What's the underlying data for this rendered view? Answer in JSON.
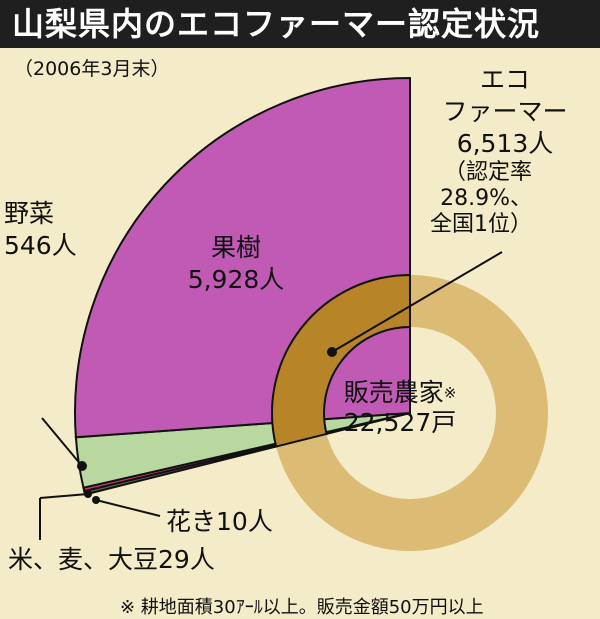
{
  "title": "山梨県内のエコファーマー認定状況",
  "subtitle": "（2006年3月末）",
  "footnote": "※ 耕地面積30ｱｰﾙ以上。販売金額50万円以上",
  "chart_data": {
    "type": "pie",
    "total": {
      "label": "販売農家",
      "mark": "※",
      "value_text": "22,527戸",
      "value": 22527
    },
    "eco_farmer": {
      "label_line1": "エコ",
      "label_line2": "ファーマー",
      "value_text": "6,513人",
      "value": 6513,
      "rate_line1": "（認定率",
      "rate_line2": "28.9%、",
      "rate_line3": "全国1位）",
      "rate": 28.9
    },
    "slices": [
      {
        "name_text": "果樹",
        "value_text": "5,928人",
        "value": 5928
      },
      {
        "name_text": "野菜",
        "value_text": "546人",
        "value": 546
      },
      {
        "name_text": "花き",
        "value_text": "10人",
        "value": 10
      },
      {
        "name_text": "米、麦、大豆",
        "value_text": "29人",
        "value": 29
      }
    ],
    "colors": {
      "fruit": "#c05ab4",
      "vegetables": "#b8d8a0",
      "flowers": "#c8386e",
      "grain": "#606050",
      "ring": "#dcbc74",
      "ring_eco": "#b88428",
      "background": "#f4ecc9"
    }
  }
}
